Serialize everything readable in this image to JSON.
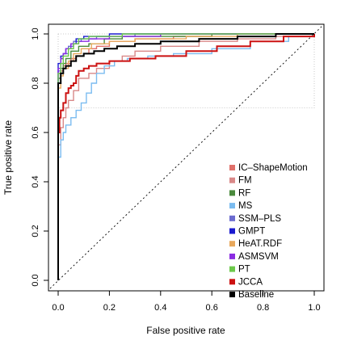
{
  "chart_data": {
    "type": "line",
    "xlabel": "False positive rate",
    "ylabel": "True positive rate",
    "xlim": [
      0,
      1
    ],
    "ylim": [
      0,
      1
    ],
    "x_ticks": [
      "0.0",
      "0.2",
      "0.4",
      "0.6",
      "0.8",
      "1.0"
    ],
    "y_ticks": [
      "0.0",
      "0.2",
      "0.4",
      "0.6",
      "0.8",
      "1.0"
    ],
    "legend_position": "bottom-right",
    "series": [
      {
        "name": "IC–ShapeMotion",
        "color": "#e0706a",
        "points": [
          [
            0,
            0
          ],
          [
            0,
            0.8
          ],
          [
            0.01,
            0.85
          ],
          [
            0.02,
            0.87
          ],
          [
            0.03,
            0.88
          ],
          [
            0.05,
            0.9
          ],
          [
            0.07,
            0.91
          ],
          [
            0.1,
            0.92
          ],
          [
            0.12,
            0.94
          ],
          [
            0.15,
            0.95
          ],
          [
            0.2,
            0.97
          ],
          [
            0.3,
            0.98
          ],
          [
            0.45,
            0.99
          ],
          [
            0.6,
            1.0
          ],
          [
            1,
            1
          ]
        ]
      },
      {
        "name": "FM",
        "color": "#d98888",
        "points": [
          [
            0,
            0
          ],
          [
            0,
            0.55
          ],
          [
            0.01,
            0.62
          ],
          [
            0.02,
            0.66
          ],
          [
            0.03,
            0.7
          ],
          [
            0.04,
            0.73
          ],
          [
            0.06,
            0.77
          ],
          [
            0.08,
            0.82
          ],
          [
            0.12,
            0.84
          ],
          [
            0.15,
            0.86
          ],
          [
            0.2,
            0.89
          ],
          [
            0.25,
            0.91
          ],
          [
            0.3,
            0.93
          ],
          [
            0.4,
            0.95
          ],
          [
            0.55,
            0.97
          ],
          [
            0.7,
            0.98
          ],
          [
            0.85,
            0.99
          ],
          [
            1,
            1
          ]
        ]
      },
      {
        "name": "RF",
        "color": "#4a8a3c",
        "points": [
          [
            0,
            0
          ],
          [
            0,
            0.82
          ],
          [
            0.01,
            0.86
          ],
          [
            0.02,
            0.88
          ],
          [
            0.03,
            0.9
          ],
          [
            0.05,
            0.93
          ],
          [
            0.08,
            0.95
          ],
          [
            0.12,
            0.96
          ],
          [
            0.18,
            0.98
          ],
          [
            0.25,
            0.99
          ],
          [
            0.35,
            0.99
          ],
          [
            0.6,
            1.0
          ],
          [
            1,
            1
          ]
        ]
      },
      {
        "name": "MS",
        "color": "#7bbcf0",
        "points": [
          [
            0,
            0
          ],
          [
            0,
            0.5
          ],
          [
            0.01,
            0.57
          ],
          [
            0.02,
            0.6
          ],
          [
            0.03,
            0.63
          ],
          [
            0.05,
            0.66
          ],
          [
            0.07,
            0.69
          ],
          [
            0.09,
            0.72
          ],
          [
            0.11,
            0.76
          ],
          [
            0.13,
            0.8
          ],
          [
            0.15,
            0.84
          ],
          [
            0.18,
            0.87
          ],
          [
            0.22,
            0.89
          ],
          [
            0.27,
            0.9
          ],
          [
            0.35,
            0.91
          ],
          [
            0.45,
            0.92
          ],
          [
            0.6,
            0.94
          ],
          [
            0.75,
            0.97
          ],
          [
            0.9,
            0.99
          ],
          [
            1,
            1
          ]
        ]
      },
      {
        "name": "SSM–PLS",
        "color": "#6b6bcf",
        "points": [
          [
            0,
            0
          ],
          [
            0,
            0.85
          ],
          [
            0.01,
            0.9
          ],
          [
            0.02,
            0.92
          ],
          [
            0.04,
            0.95
          ],
          [
            0.06,
            0.97
          ],
          [
            0.09,
            0.98
          ],
          [
            0.15,
            0.99
          ],
          [
            0.3,
            1.0
          ],
          [
            1,
            1
          ]
        ]
      },
      {
        "name": "GMPT",
        "color": "#1a1acf",
        "points": [
          [
            0,
            0
          ],
          [
            0,
            0.88
          ],
          [
            0.01,
            0.91
          ],
          [
            0.02,
            0.92
          ],
          [
            0.03,
            0.94
          ],
          [
            0.05,
            0.96
          ],
          [
            0.07,
            0.98
          ],
          [
            0.1,
            0.99
          ],
          [
            0.2,
            1.0
          ],
          [
            1,
            1
          ]
        ]
      },
      {
        "name": "HeAT.RDF",
        "color": "#e8a85c",
        "points": [
          [
            0,
            0
          ],
          [
            0,
            0.78
          ],
          [
            0.01,
            0.83
          ],
          [
            0.02,
            0.86
          ],
          [
            0.04,
            0.89
          ],
          [
            0.06,
            0.92
          ],
          [
            0.09,
            0.94
          ],
          [
            0.13,
            0.96
          ],
          [
            0.2,
            0.97
          ],
          [
            0.3,
            0.98
          ],
          [
            0.5,
            0.99
          ],
          [
            0.7,
            1.0
          ],
          [
            1,
            1
          ]
        ]
      },
      {
        "name": "ASMSVM",
        "color": "#8a2be2",
        "points": [
          [
            0,
            0
          ],
          [
            0,
            0.86
          ],
          [
            0.01,
            0.9
          ],
          [
            0.02,
            0.92
          ],
          [
            0.03,
            0.94
          ],
          [
            0.05,
            0.96
          ],
          [
            0.08,
            0.97
          ],
          [
            0.12,
            0.98
          ],
          [
            0.2,
            0.99
          ],
          [
            0.4,
            1.0
          ],
          [
            1,
            1
          ]
        ]
      },
      {
        "name": "PT",
        "color": "#6cc94a",
        "points": [
          [
            0,
            0
          ],
          [
            0,
            0.84
          ],
          [
            0.01,
            0.88
          ],
          [
            0.02,
            0.91
          ],
          [
            0.04,
            0.94
          ],
          [
            0.06,
            0.96
          ],
          [
            0.08,
            0.98
          ],
          [
            0.12,
            0.99
          ],
          [
            0.25,
            1.0
          ],
          [
            1,
            1
          ]
        ]
      },
      {
        "name": "JCCA",
        "color": "#cc1111",
        "points": [
          [
            0,
            0
          ],
          [
            0,
            0.6
          ],
          [
            0.005,
            0.66
          ],
          [
            0.01,
            0.69
          ],
          [
            0.02,
            0.72
          ],
          [
            0.03,
            0.76
          ],
          [
            0.04,
            0.78
          ],
          [
            0.05,
            0.79
          ],
          [
            0.06,
            0.8
          ],
          [
            0.07,
            0.83
          ],
          [
            0.08,
            0.85
          ],
          [
            0.1,
            0.86
          ],
          [
            0.12,
            0.87
          ],
          [
            0.15,
            0.88
          ],
          [
            0.2,
            0.89
          ],
          [
            0.28,
            0.9
          ],
          [
            0.38,
            0.91
          ],
          [
            0.5,
            0.93
          ],
          [
            0.62,
            0.95
          ],
          [
            0.75,
            0.97
          ],
          [
            0.88,
            0.99
          ],
          [
            1,
            1
          ]
        ]
      },
      {
        "name": "Baseline",
        "color": "#000000",
        "points": [
          [
            0,
            0
          ],
          [
            0,
            0.8
          ],
          [
            0.01,
            0.84
          ],
          [
            0.02,
            0.86
          ],
          [
            0.03,
            0.87
          ],
          [
            0.05,
            0.89
          ],
          [
            0.07,
            0.91
          ],
          [
            0.1,
            0.92
          ],
          [
            0.14,
            0.93
          ],
          [
            0.18,
            0.94
          ],
          [
            0.23,
            0.95
          ],
          [
            0.3,
            0.96
          ],
          [
            0.4,
            0.97
          ],
          [
            0.55,
            0.98
          ],
          [
            0.7,
            0.99
          ],
          [
            0.85,
            1.0
          ],
          [
            1,
            1
          ]
        ]
      }
    ],
    "reference_line": {
      "points": [
        [
          0,
          0
        ],
        [
          1,
          1
        ]
      ],
      "style": "dotted",
      "color": "#000000"
    },
    "highlight_box": {
      "x": [
        0,
        1
      ],
      "y": [
        0.7,
        1
      ],
      "color": "#bbbbbb",
      "style": "dotted"
    }
  }
}
